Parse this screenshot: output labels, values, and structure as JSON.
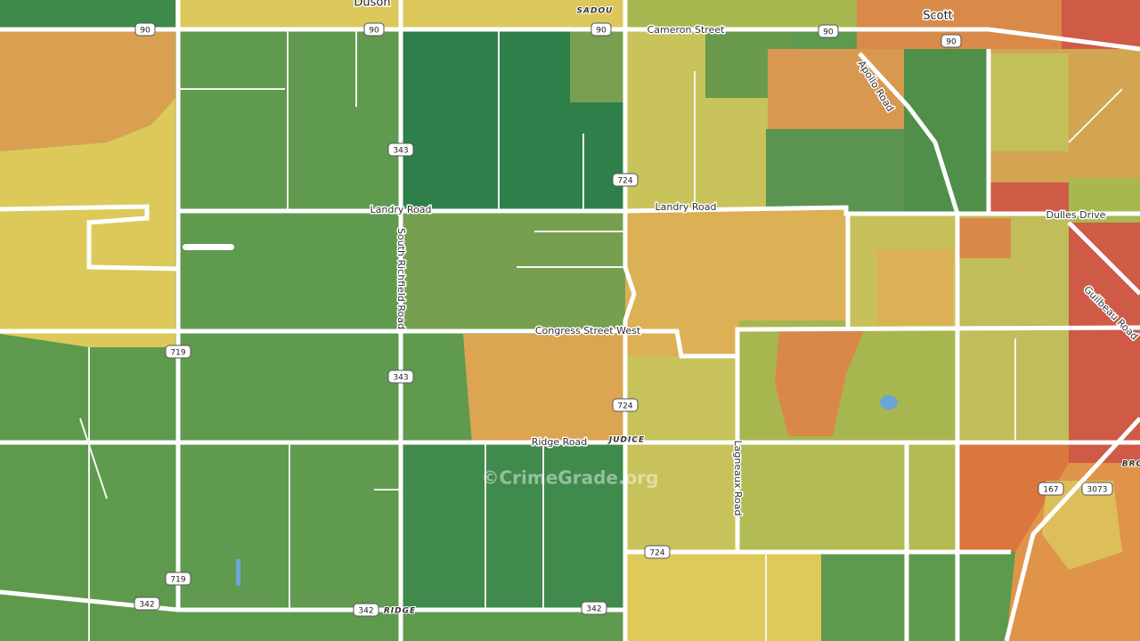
{
  "places": {
    "duson": "Duson",
    "sadou": "SADOU",
    "scott": "Scott",
    "judice": "JUDICE",
    "ridge": "RIDGE",
    "bro": "BRO"
  },
  "roads": [
    "Cameron Street",
    "Apollo Road",
    "Landry Road",
    "Landry Road",
    "South Richfield Road",
    "Congress Street West",
    "Ridge Road",
    "Lagneaux Road",
    "Dulles Drive",
    "Guilbeau Road"
  ],
  "shields": [
    "90",
    "90",
    "90",
    "90",
    "90",
    "343",
    "343",
    "724",
    "724",
    "724",
    "719",
    "719",
    "342",
    "342",
    "342",
    "167",
    "3073"
  ],
  "watermark": "©CrimeGrade.org"
}
